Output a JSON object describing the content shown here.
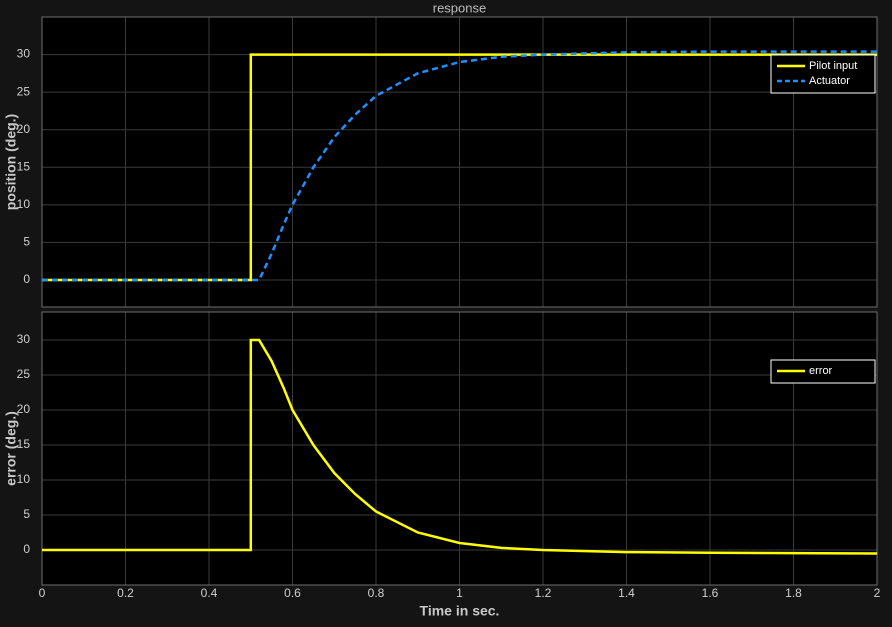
{
  "chart_data": [
    {
      "type": "line",
      "title": "response",
      "ylabel": "position (deg.)",
      "xlim": [
        0,
        2
      ],
      "xticks": [
        0,
        0.2,
        0.4,
        0.6,
        0.8,
        1,
        1.2,
        1.4,
        1.6,
        1.8,
        2
      ],
      "ylim": [
        -3.6,
        35
      ],
      "yticks": [
        0,
        5,
        10,
        15,
        20,
        25,
        30
      ],
      "grid": true,
      "legend": "northeast",
      "series": [
        {
          "name": "Pilot input",
          "color": "#ffff00",
          "style": "solid",
          "x": [
            0,
            0.5,
            0.5,
            2
          ],
          "values": [
            0,
            0,
            30,
            30
          ]
        },
        {
          "name": "Actuator",
          "color": "#1e90ff",
          "style": "dashed",
          "x": [
            0,
            0.52,
            0.55,
            0.58,
            0.6,
            0.65,
            0.7,
            0.75,
            0.8,
            0.9,
            1.0,
            1.1,
            1.2,
            1.4,
            1.6,
            2.0
          ],
          "values": [
            0,
            0,
            3.5,
            7.5,
            10,
            15,
            19,
            22,
            24.5,
            27.5,
            29,
            29.7,
            30,
            30.3,
            30.4,
            30.4
          ]
        }
      ]
    },
    {
      "type": "line",
      "ylabel": "error (deg.)",
      "xlabel": "Time in sec.",
      "xlim": [
        0,
        2
      ],
      "xticks": [
        0,
        0.2,
        0.4,
        0.6,
        0.8,
        1,
        1.2,
        1.4,
        1.6,
        1.8,
        2
      ],
      "ylim": [
        -5,
        34
      ],
      "yticks": [
        0,
        5,
        10,
        15,
        20,
        25,
        30
      ],
      "grid": true,
      "legend": "northeast",
      "series": [
        {
          "name": "error",
          "color": "#ffff00",
          "style": "solid",
          "x": [
            0,
            0.5,
            0.5,
            0.52,
            0.55,
            0.58,
            0.6,
            0.65,
            0.7,
            0.75,
            0.8,
            0.9,
            1.0,
            1.1,
            1.2,
            1.4,
            1.6,
            2.0
          ],
          "values": [
            0,
            0,
            30,
            30,
            27,
            23,
            20,
            15,
            11,
            8,
            5.5,
            2.5,
            1,
            0.3,
            0,
            -0.3,
            -0.4,
            -0.5
          ]
        }
      ]
    }
  ]
}
